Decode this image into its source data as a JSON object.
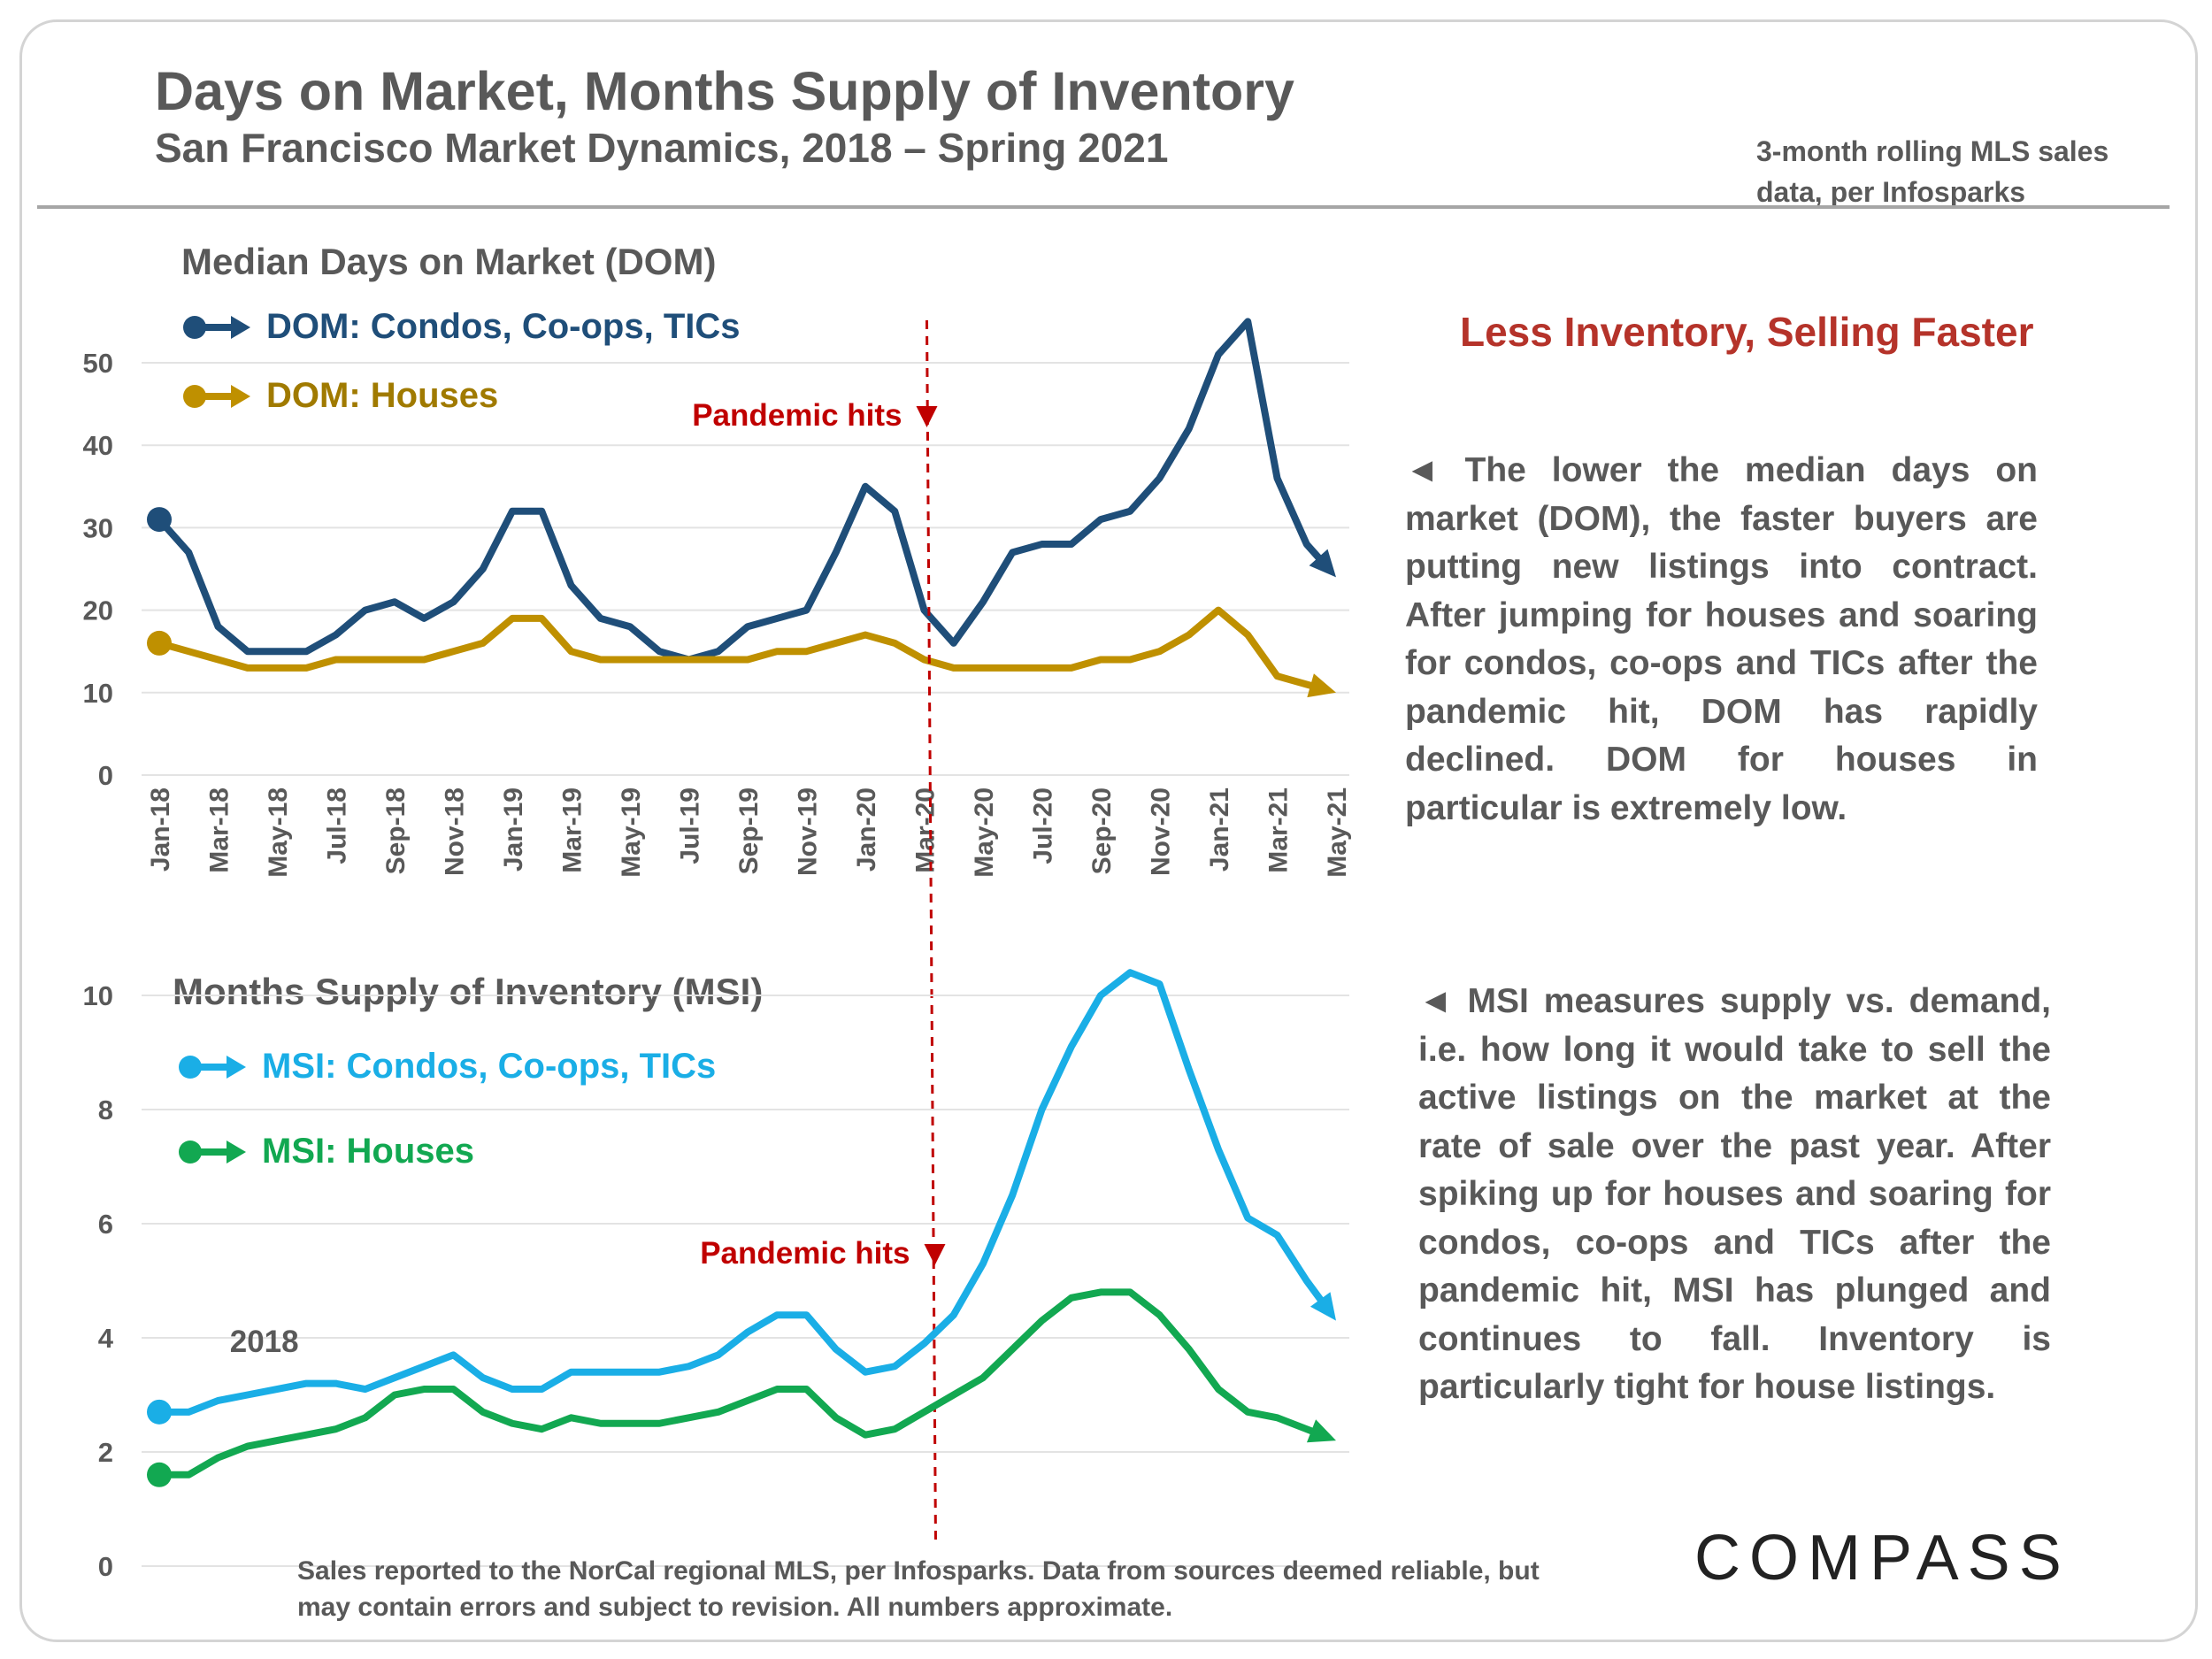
{
  "header": {
    "title": "Days on Market, Months Supply of Inventory",
    "subtitle": "San Francisco Market Dynamics, 2018 – Spring 2021",
    "source_note": "3-month rolling MLS sales data, per Infosparks"
  },
  "insight": {
    "heading": "Less Inventory, Selling Faster",
    "dom_paragraph": "◄ The lower the median days on market (DOM), the faster buyers are putting new listings into contract. After jumping for houses and soaring for condos, co-ops and TICs after the pandemic hit, DOM has rapidly declined. DOM for houses in particular is extremely low.",
    "msi_paragraph": "◄ MSI measures supply vs. demand, i.e. how long it would take to sell the active listings on the market at the rate of sale over the past year. After spiking up for houses and soaring for condos, co-ops and TICs after the pandemic hit, MSI has plunged and continues to fall. Inventory is particularly tight for house listings."
  },
  "footnote": "Sales reported to the NorCal regional MLS, per Infosparks. Data from sources deemed reliable, but may contain errors and subject to revision. All numbers approximate.",
  "logo": "COMPASS",
  "colors": {
    "dom_condo": "#1f4e79",
    "dom_house": "#bf9000",
    "msi_condo": "#1aaee6",
    "msi_house": "#12a851",
    "annotation": "#c00000",
    "heading_red": "#b5332a"
  },
  "chart_data": [
    {
      "type": "line",
      "title": "Median Days on Market (DOM)",
      "x": [
        "Jan-18",
        "Feb-18",
        "Mar-18",
        "Apr-18",
        "May-18",
        "Jun-18",
        "Jul-18",
        "Aug-18",
        "Sep-18",
        "Oct-18",
        "Nov-18",
        "Dec-18",
        "Jan-19",
        "Feb-19",
        "Mar-19",
        "Apr-19",
        "May-19",
        "Jun-19",
        "Jul-19",
        "Aug-19",
        "Sep-19",
        "Oct-19",
        "Nov-19",
        "Dec-19",
        "Jan-20",
        "Feb-20",
        "Mar-20",
        "Apr-20",
        "May-20",
        "Jun-20",
        "Jul-20",
        "Aug-20",
        "Sep-20",
        "Oct-20",
        "Nov-20",
        "Dec-20",
        "Jan-21",
        "Feb-21",
        "Mar-21",
        "Apr-21",
        "May-21"
      ],
      "tick_labels": [
        "Jan-18",
        "Mar-18",
        "May-18",
        "Jul-18",
        "Sep-18",
        "Nov-18",
        "Jan-19",
        "Mar-19",
        "May-19",
        "Jul-19",
        "Sep-19",
        "Nov-19",
        "Jan-20",
        "Mar-20",
        "May-20",
        "Jul-20",
        "Sep-20",
        "Nov-20",
        "Jan-21",
        "Mar-21",
        "May-21"
      ],
      "y_ticks": [
        0,
        10,
        20,
        30,
        40,
        50
      ],
      "ylim": [
        0,
        55
      ],
      "grid": true,
      "legend": "top-left",
      "series": [
        {
          "name": "DOM: Condos, Co-ops, TICs",
          "color_key": "dom_condo",
          "values": [
            31,
            27,
            18,
            15,
            15,
            15,
            17,
            20,
            21,
            19,
            21,
            25,
            32,
            32,
            23,
            19,
            18,
            15,
            14,
            15,
            18,
            19,
            20,
            27,
            35,
            32,
            20,
            16,
            21,
            27,
            28,
            28,
            31,
            32,
            36,
            42,
            51,
            55,
            36,
            28,
            24
          ]
        },
        {
          "name": "DOM: Houses",
          "color_key": "dom_house",
          "values": [
            16,
            15,
            14,
            13,
            13,
            13,
            14,
            14,
            14,
            14,
            15,
            16,
            19,
            19,
            15,
            14,
            14,
            14,
            14,
            14,
            14,
            15,
            15,
            16,
            17,
            16,
            14,
            13,
            13,
            13,
            13,
            13,
            14,
            14,
            15,
            17,
            20,
            17,
            12,
            11,
            10
          ]
        }
      ],
      "annotations": [
        {
          "text": "Pandemic hits",
          "x": "Mar-20"
        }
      ]
    },
    {
      "type": "line",
      "title": "Months Supply of Inventory (MSI)",
      "x": [
        "Jan-18",
        "Feb-18",
        "Mar-18",
        "Apr-18",
        "May-18",
        "Jun-18",
        "Jul-18",
        "Aug-18",
        "Sep-18",
        "Oct-18",
        "Nov-18",
        "Dec-18",
        "Jan-19",
        "Feb-19",
        "Mar-19",
        "Apr-19",
        "May-19",
        "Jun-19",
        "Jul-19",
        "Aug-19",
        "Sep-19",
        "Oct-19",
        "Nov-19",
        "Dec-19",
        "Jan-20",
        "Feb-20",
        "Mar-20",
        "Apr-20",
        "May-20",
        "Jun-20",
        "Jul-20",
        "Aug-20",
        "Sep-20",
        "Oct-20",
        "Nov-20",
        "Dec-20",
        "Jan-21",
        "Feb-21",
        "Mar-21",
        "Apr-21",
        "May-21"
      ],
      "y_ticks": [
        0,
        2,
        4,
        6,
        8,
        10
      ],
      "ylim": [
        0,
        10
      ],
      "grid": true,
      "legend": "top-left",
      "series": [
        {
          "name": "MSI: Condos, Co-ops, TICs",
          "color_key": "msi_condo",
          "values": [
            2.7,
            2.7,
            2.9,
            3.0,
            3.1,
            3.2,
            3.2,
            3.1,
            3.3,
            3.5,
            3.7,
            3.3,
            3.1,
            3.1,
            3.4,
            3.4,
            3.4,
            3.4,
            3.5,
            3.7,
            4.1,
            4.4,
            4.4,
            3.8,
            3.4,
            3.5,
            3.9,
            4.4,
            5.3,
            6.5,
            8.0,
            9.1,
            10.0,
            10.4,
            10.2,
            8.7,
            7.3,
            6.1,
            5.8,
            5.0,
            4.3
          ]
        },
        {
          "name": "MSI: Houses",
          "color_key": "msi_house",
          "values": [
            1.6,
            1.6,
            1.9,
            2.1,
            2.2,
            2.3,
            2.4,
            2.6,
            3.0,
            3.1,
            3.1,
            2.7,
            2.5,
            2.4,
            2.6,
            2.5,
            2.5,
            2.5,
            2.6,
            2.7,
            2.9,
            3.1,
            3.1,
            2.6,
            2.3,
            2.4,
            2.7,
            3.0,
            3.3,
            3.8,
            4.3,
            4.7,
            4.8,
            4.8,
            4.4,
            3.8,
            3.1,
            2.7,
            2.6,
            2.4,
            2.2
          ]
        }
      ],
      "annotations": [
        {
          "text": "Pandemic hits",
          "x": "Mar-20"
        },
        {
          "text": "2018",
          "x": "Apr-18"
        }
      ]
    }
  ]
}
